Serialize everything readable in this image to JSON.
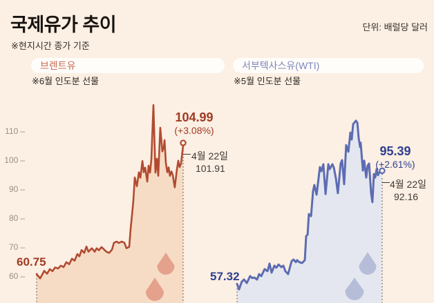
{
  "header": {
    "title": "국제유가 추이",
    "subtitle": "※현지시간 종가 기준",
    "unit": "단위: 배럴당 달러"
  },
  "charts": [
    {
      "label": "브렌트유",
      "note": "※6월 인도분 선물",
      "start_label": "60.75",
      "end_price": "104.99",
      "end_change": "(+3.08%)",
      "marker_date": "4월 22일",
      "marker_price": "101.91",
      "colors": {
        "line": "#b14a31",
        "fill": "#f6dcc4",
        "accent": "#a03a24",
        "droplet": "#e4a18c",
        "pill_text": "#c56b52"
      }
    },
    {
      "label": "서부텍사스유(WTI)",
      "note": "※5월 인도분 선물",
      "start_label": "57.32",
      "end_price": "95.39",
      "end_change": "(+2.61%)",
      "marker_date": "4월 22일",
      "marker_price": "92.16",
      "colors": {
        "line": "#5c6cb2",
        "fill": "#e4e7ef",
        "accent": "#2e3f8f",
        "droplet": "#b6bdd8",
        "pill_text": "#7d87ba"
      }
    }
  ],
  "chart_data": [
    {
      "type": "area",
      "name": "브렌트유 (Brent crude, 6월 인도분 선물)",
      "unit": "배럴당 달러 (USD/barrel)",
      "ylim": [
        55,
        122
      ],
      "yticks": [
        60,
        70,
        80,
        90,
        100,
        110
      ],
      "start_value": 60.75,
      "end_value": 104.99,
      "end_change_pct": 3.08,
      "marker_date": "4월 22일",
      "marker_value": 101.91,
      "points": [
        [
          0,
          60.75
        ],
        [
          0.024,
          59.2
        ],
        [
          0.052,
          61.8
        ],
        [
          0.071,
          60.8
        ],
        [
          0.09,
          62.4
        ],
        [
          0.108,
          61.7
        ],
        [
          0.127,
          63.0
        ],
        [
          0.146,
          62.6
        ],
        [
          0.165,
          63.6
        ],
        [
          0.184,
          63.1
        ],
        [
          0.203,
          64.8
        ],
        [
          0.222,
          64.1
        ],
        [
          0.241,
          66.0
        ],
        [
          0.259,
          65.3
        ],
        [
          0.278,
          67.6
        ],
        [
          0.292,
          66.8
        ],
        [
          0.307,
          69.0
        ],
        [
          0.325,
          68.0
        ],
        [
          0.34,
          70.2
        ],
        [
          0.354,
          68.4
        ],
        [
          0.377,
          69.6
        ],
        [
          0.396,
          68.4
        ],
        [
          0.41,
          69.6
        ],
        [
          0.425,
          68.9
        ],
        [
          0.443,
          70.0
        ],
        [
          0.462,
          69.1
        ],
        [
          0.476,
          68.4
        ],
        [
          0.495,
          68.0
        ],
        [
          0.514,
          69.1
        ],
        [
          0.528,
          71.5
        ],
        [
          0.547,
          71.9
        ],
        [
          0.561,
          71.4
        ],
        [
          0.58,
          71.9
        ],
        [
          0.599,
          71.5
        ],
        [
          0.613,
          69.6
        ],
        [
          0.632,
          70.1
        ],
        [
          0.642,
          76.5
        ],
        [
          0.651,
          81.0
        ],
        [
          0.66,
          85.8
        ],
        [
          0.67,
          94.0
        ],
        [
          0.684,
          91.0
        ],
        [
          0.698,
          95.8
        ],
        [
          0.708,
          93.9
        ],
        [
          0.722,
          99.7
        ],
        [
          0.731,
          95.8
        ],
        [
          0.741,
          97.4
        ],
        [
          0.755,
          92.6
        ],
        [
          0.764,
          98.1
        ],
        [
          0.774,
          95.7
        ],
        [
          0.783,
          100.2
        ],
        [
          0.797,
          119.0
        ],
        [
          0.811,
          95.7
        ],
        [
          0.821,
          100.5
        ],
        [
          0.83,
          94.6
        ],
        [
          0.844,
          111.2
        ],
        [
          0.858,
          103.0
        ],
        [
          0.868,
          104.5
        ],
        [
          0.873,
          106.9
        ],
        [
          0.882,
          99.0
        ],
        [
          0.892,
          95.8
        ],
        [
          0.901,
          97.5
        ],
        [
          0.91,
          94.6
        ],
        [
          0.92,
          96.1
        ],
        [
          0.929,
          95.0
        ],
        [
          0.943,
          90.6
        ],
        [
          0.958,
          97.0
        ],
        [
          0.967,
          99.8
        ],
        [
          0.976,
          97.6
        ],
        [
          0.986,
          98.8
        ],
        [
          0.993,
          101.91
        ],
        [
          1,
          104.99
        ]
      ]
    },
    {
      "type": "area",
      "name": "서부텍사스유 (WTI, 5월 인도분 선물)",
      "unit": "배럴당 달러 (USD/barrel)",
      "ylim": [
        55,
        122
      ],
      "yticks": [
        60,
        70,
        80,
        90,
        100,
        110
      ],
      "start_value": 57.32,
      "end_value": 95.39,
      "end_change_pct": 2.61,
      "marker_date": "4월 22일",
      "marker_value": 92.16,
      "points": [
        [
          0,
          57.32
        ],
        [
          0.014,
          55.4
        ],
        [
          0.033,
          58.1
        ],
        [
          0.048,
          58.8
        ],
        [
          0.067,
          57.6
        ],
        [
          0.09,
          60.0
        ],
        [
          0.105,
          59.3
        ],
        [
          0.119,
          59.5
        ],
        [
          0.138,
          58.8
        ],
        [
          0.152,
          60.7
        ],
        [
          0.167,
          60.0
        ],
        [
          0.19,
          62.4
        ],
        [
          0.21,
          61.7
        ],
        [
          0.224,
          64.3
        ],
        [
          0.238,
          61.2
        ],
        [
          0.257,
          63.6
        ],
        [
          0.271,
          62.9
        ],
        [
          0.286,
          64.0
        ],
        [
          0.305,
          63.1
        ],
        [
          0.319,
          63.6
        ],
        [
          0.333,
          61.7
        ],
        [
          0.352,
          60.7
        ],
        [
          0.376,
          65.2
        ],
        [
          0.39,
          65.7
        ],
        [
          0.405,
          64.8
        ],
        [
          0.414,
          65.5
        ],
        [
          0.429,
          64.8
        ],
        [
          0.448,
          64.5
        ],
        [
          0.467,
          65.5
        ],
        [
          0.476,
          73.8
        ],
        [
          0.486,
          74.3
        ],
        [
          0.495,
          81.4
        ],
        [
          0.51,
          80.7
        ],
        [
          0.524,
          89.3
        ],
        [
          0.533,
          91.4
        ],
        [
          0.548,
          88.1
        ],
        [
          0.571,
          97.6
        ],
        [
          0.581,
          96.2
        ],
        [
          0.595,
          98.6
        ],
        [
          0.61,
          88.3
        ],
        [
          0.629,
          98.6
        ],
        [
          0.638,
          96.9
        ],
        [
          0.657,
          98.6
        ],
        [
          0.667,
          97.4
        ],
        [
          0.681,
          93.8
        ],
        [
          0.695,
          88.6
        ],
        [
          0.714,
          98.8
        ],
        [
          0.724,
          100.0
        ],
        [
          0.738,
          91.7
        ],
        [
          0.752,
          105.2
        ],
        [
          0.767,
          102.9
        ],
        [
          0.781,
          109.5
        ],
        [
          0.79,
          107.1
        ],
        [
          0.8,
          112.4
        ],
        [
          0.819,
          113.6
        ],
        [
          0.829,
          112.9
        ],
        [
          0.838,
          107.6
        ],
        [
          0.848,
          104.5
        ],
        [
          0.852,
          106.0
        ],
        [
          0.867,
          96.4
        ],
        [
          0.876,
          99.8
        ],
        [
          0.89,
          94.0
        ],
        [
          0.9,
          98.1
        ],
        [
          0.91,
          98.8
        ],
        [
          0.924,
          88.6
        ],
        [
          0.933,
          85.5
        ],
        [
          0.943,
          95.2
        ],
        [
          0.952,
          94.0
        ],
        [
          0.962,
          96.9
        ],
        [
          0.971,
          94.8
        ],
        [
          0.986,
          96.3
        ],
        [
          1,
          95.39
        ]
      ]
    }
  ]
}
